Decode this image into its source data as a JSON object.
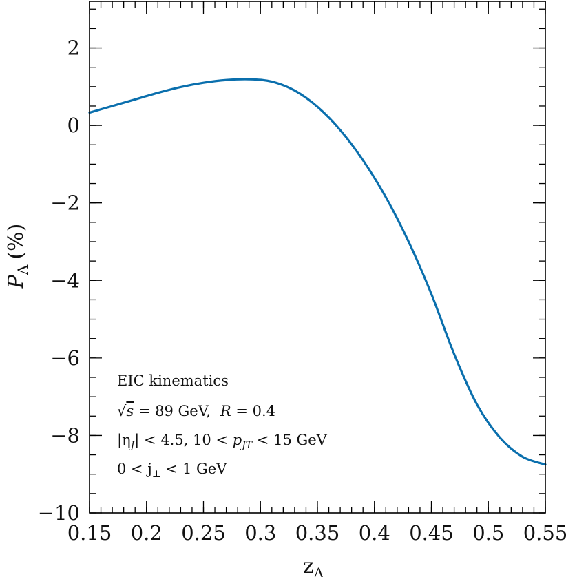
{
  "chart_data": {
    "type": "line",
    "title": "",
    "xlabel": "z",
    "xlabel_sub": "Λ",
    "ylabel_main": "P",
    "ylabel_sub": "Λ",
    "ylabel_unit": "(%)",
    "xlim": [
      0.15,
      0.55
    ],
    "ylim": [
      -10,
      3.2
    ],
    "xticks": [
      0.15,
      0.2,
      0.25,
      0.3,
      0.35,
      0.4,
      0.45,
      0.5,
      0.55
    ],
    "xtick_labels": [
      "0.15",
      "0.2",
      "0.25",
      "0.3",
      "0.35",
      "0.4",
      "0.45",
      "0.5",
      "0.55"
    ],
    "yticks": [
      2,
      0,
      -2,
      -4,
      -6,
      -8,
      -10
    ],
    "ytick_labels": [
      "2",
      "0",
      "−2",
      "−4",
      "−6",
      "−8",
      "−10"
    ],
    "grid": false,
    "line_color": "#0a6fad",
    "series": [
      {
        "x": [
          0.15,
          0.17,
          0.19,
          0.21,
          0.23,
          0.25,
          0.27,
          0.29,
          0.31,
          0.33,
          0.35,
          0.37,
          0.39,
          0.41,
          0.43,
          0.45,
          0.47,
          0.49,
          0.51,
          0.53,
          0.55
        ],
        "values": [
          0.33,
          0.5,
          0.67,
          0.84,
          0.99,
          1.1,
          1.17,
          1.19,
          1.13,
          0.9,
          0.48,
          -0.12,
          -0.9,
          -1.85,
          -3.0,
          -4.35,
          -5.9,
          -7.2,
          -8.05,
          -8.55,
          -8.75
        ]
      }
    ],
    "annotations": {
      "line1": "EIC kinematics",
      "line2": {
        "sqrt": "√",
        "var": "s",
        "eq": " = 89 GeV,",
        "r": "R",
        "r_eq": " = 0.4"
      },
      "line3": {
        "eta_open": "|η",
        "eta_sub": "J",
        "eta_rest": "| < 4.5,  10 < ",
        "p": "p",
        "p_sub": "JT",
        "p_rest": " < 15 GeV"
      },
      "line4": {
        "prefix": "0 < j",
        "sub": "⊥",
        "suffix": " < 1 GeV"
      }
    }
  }
}
